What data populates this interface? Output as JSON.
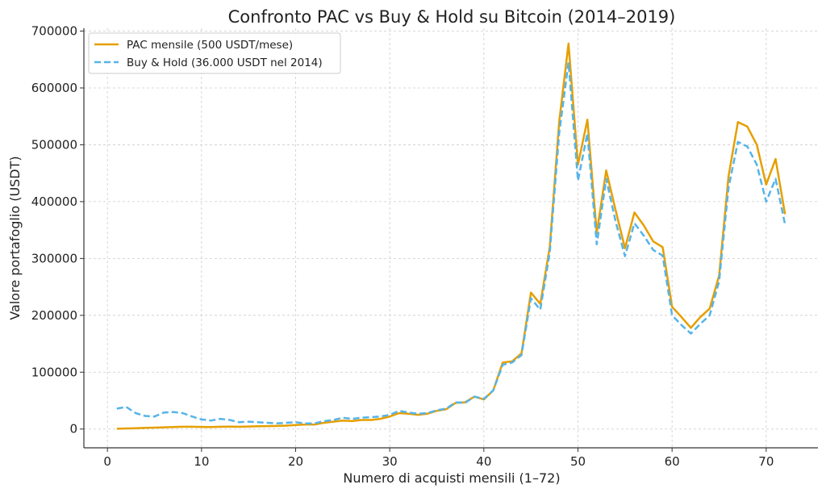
{
  "chart_data": {
    "type": "line",
    "title": "Confronto PAC vs Buy & Hold su Bitcoin (2014–2019)",
    "xlabel": "Numero di acquisti mensili (1–72)",
    "ylabel": "Valore portafoglio (USDT)",
    "xlim": [
      -2.5,
      75.5
    ],
    "ylim": [
      -33000,
      705000
    ],
    "xticks": [
      0,
      10,
      20,
      30,
      40,
      50,
      60,
      70
    ],
    "yticks": [
      0,
      100000,
      200000,
      300000,
      400000,
      500000,
      600000,
      700000
    ],
    "grid": true,
    "legend_position": "top-left",
    "x": [
      1,
      2,
      3,
      4,
      5,
      6,
      7,
      8,
      9,
      10,
      11,
      12,
      13,
      14,
      15,
      16,
      17,
      18,
      19,
      20,
      21,
      22,
      23,
      24,
      25,
      26,
      27,
      28,
      29,
      30,
      31,
      32,
      33,
      34,
      35,
      36,
      37,
      38,
      39,
      40,
      41,
      42,
      43,
      44,
      45,
      46,
      47,
      48,
      49,
      50,
      51,
      52,
      53,
      54,
      55,
      56,
      57,
      58,
      59,
      60,
      61,
      62,
      63,
      64,
      65,
      66,
      67,
      68,
      69,
      70,
      71,
      72
    ],
    "series": [
      {
        "name": "PAC mensile (500 USDT/mese)",
        "color": "#E69F00",
        "style": "solid",
        "values": [
          500,
          1000,
          1500,
          2000,
          2500,
          3000,
          3500,
          4000,
          4000,
          3800,
          3500,
          4000,
          4200,
          4000,
          4500,
          5000,
          5200,
          5500,
          6000,
          7000,
          8000,
          8000,
          11000,
          13000,
          15000,
          14000,
          16000,
          16000,
          18000,
          22000,
          28000,
          27000,
          25000,
          27000,
          32000,
          35000,
          46000,
          47000,
          57000,
          52000,
          68000,
          117000,
          119000,
          133000,
          240000,
          220000,
          320000,
          540000,
          678000,
          465000,
          544000,
          345000,
          455000,
          385000,
          318000,
          381000,
          358000,
          330000,
          320000,
          215000,
          197000,
          178000,
          197000,
          212000,
          270000,
          445000,
          540000,
          532000,
          500000,
          430000,
          475000,
          378000
        ]
      },
      {
        "name": "Buy & Hold (36.000 USDT nel 2014)",
        "color": "#56B4E9",
        "style": "dashed",
        "values": [
          36000,
          39000,
          28000,
          23000,
          22000,
          29000,
          30000,
          28000,
          22000,
          17000,
          15000,
          18000,
          16000,
          12000,
          13000,
          12000,
          11000,
          10000,
          11000,
          12000,
          10000,
          10000,
          14000,
          16000,
          20000,
          18000,
          20000,
          21000,
          22000,
          25000,
          32000,
          29000,
          27000,
          28000,
          33000,
          36000,
          47000,
          46000,
          57000,
          53000,
          68000,
          113000,
          117000,
          130000,
          230000,
          210000,
          310000,
          520000,
          645000,
          437000,
          520000,
          325000,
          440000,
          365000,
          304000,
          362000,
          340000,
          315000,
          305000,
          200000,
          183000,
          168000,
          185000,
          200000,
          260000,
          425000,
          505000,
          497000,
          465000,
          400000,
          440000,
          360000
        ]
      }
    ]
  }
}
